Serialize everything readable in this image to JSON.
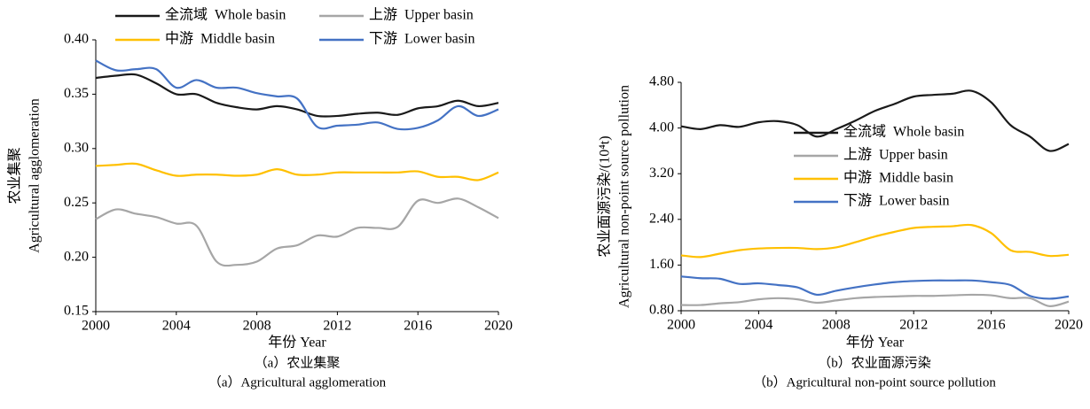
{
  "chart_data": [
    {
      "type": "line",
      "y_label": [
        "农业集聚",
        "Agricultural agglomeration"
      ],
      "x_label": "年份  Year",
      "caption": [
        "（a）农业集聚",
        "（a）Agricultural agglomeration"
      ],
      "x": [
        2000,
        2001,
        2002,
        2003,
        2004,
        2005,
        2006,
        2007,
        2008,
        2009,
        2010,
        2011,
        2012,
        2013,
        2014,
        2015,
        2016,
        2017,
        2018,
        2019,
        2020
      ],
      "xlim": [
        2000,
        2020
      ],
      "xticks": [
        2000,
        2004,
        2008,
        2012,
        2016,
        2020
      ],
      "ylim": [
        0.15,
        0.4
      ],
      "yticks": [
        0.15,
        {
          "value": 0.2,
          "label": "0.20"
        },
        0.25,
        {
          "value": 0.3,
          "label": "0.30"
        },
        0.35,
        {
          "value": 0.4,
          "label": "0.40"
        }
      ],
      "legend": "top",
      "series": [
        {
          "name": "全流域  Whole basin",
          "color": "#1a1a1a",
          "values": [
            0.365,
            0.367,
            0.368,
            0.36,
            0.35,
            0.35,
            0.342,
            0.338,
            0.336,
            0.339,
            0.336,
            0.33,
            0.33,
            0.332,
            0.333,
            0.331,
            0.337,
            0.339,
            0.344,
            0.339,
            0.342
          ]
        },
        {
          "name": "上游  Upper basin",
          "color": "#a6a6a6",
          "values": [
            0.235,
            0.244,
            0.24,
            0.237,
            0.231,
            0.229,
            0.196,
            0.193,
            0.196,
            0.208,
            0.211,
            0.22,
            0.219,
            0.227,
            0.227,
            0.228,
            0.252,
            0.25,
            0.254,
            0.246,
            0.236
          ]
        },
        {
          "name": "中游  Middle basin",
          "color": "#ffc000",
          "values": [
            0.284,
            0.285,
            0.286,
            0.28,
            0.275,
            0.276,
            0.276,
            0.275,
            0.276,
            0.281,
            0.276,
            0.276,
            0.278,
            0.278,
            0.278,
            0.278,
            0.279,
            0.274,
            0.274,
            0.271,
            0.278
          ]
        },
        {
          "name": "下游  Lower basin",
          "color": "#4472c4",
          "values": [
            0.381,
            0.372,
            0.373,
            0.373,
            0.356,
            0.363,
            0.356,
            0.356,
            0.351,
            0.348,
            0.346,
            0.32,
            0.321,
            0.322,
            0.324,
            0.318,
            0.319,
            0.326,
            0.339,
            0.33,
            0.336
          ]
        }
      ]
    },
    {
      "type": "line",
      "y_label": [
        "农业面源污染/(10⁴t)",
        "Agricultural non-point source pollution"
      ],
      "x_label": "年份  Year",
      "caption": [
        "（b）农业面源污染",
        "（b）Agricultural non-point source pollution"
      ],
      "x": [
        2000,
        2001,
        2002,
        2003,
        2004,
        2005,
        2006,
        2007,
        2008,
        2009,
        2010,
        2011,
        2012,
        2013,
        2014,
        2015,
        2016,
        2017,
        2018,
        2019,
        2020
      ],
      "xlim": [
        2000,
        2020
      ],
      "xticks": [
        2000,
        2004,
        2008,
        2012,
        2016,
        2020
      ],
      "ylim": [
        0.8,
        4.8
      ],
      "yticks": [
        {
          "value": 0.8,
          "label": "0.80"
        },
        {
          "value": 1.6,
          "label": "1.60"
        },
        {
          "value": 2.4,
          "label": "2.40"
        },
        {
          "value": 3.2,
          "label": "3.20"
        },
        {
          "value": 4.0,
          "label": "4.00"
        },
        {
          "value": 4.8,
          "label": "4.80"
        }
      ],
      "legend": "right",
      "series": [
        {
          "name": "全流域  Whole basin",
          "color": "#1a1a1a",
          "values": [
            4.03,
            3.98,
            4.05,
            4.02,
            4.1,
            4.12,
            4.05,
            3.85,
            3.98,
            4.13,
            4.3,
            4.42,
            4.55,
            4.58,
            4.6,
            4.65,
            4.45,
            4.05,
            3.85,
            3.6,
            3.72
          ]
        },
        {
          "name": "上游  Upper basin",
          "color": "#a6a6a6",
          "values": [
            0.9,
            0.9,
            0.93,
            0.95,
            1.0,
            1.02,
            1.0,
            0.94,
            0.98,
            1.02,
            1.04,
            1.05,
            1.06,
            1.06,
            1.07,
            1.08,
            1.07,
            1.02,
            1.02,
            0.88,
            0.96
          ]
        },
        {
          "name": "中游  Middle basin",
          "color": "#ffc000",
          "values": [
            1.77,
            1.74,
            1.8,
            1.86,
            1.89,
            1.9,
            1.9,
            1.88,
            1.91,
            2.0,
            2.1,
            2.18,
            2.25,
            2.27,
            2.28,
            2.3,
            2.16,
            1.86,
            1.83,
            1.76,
            1.78
          ]
        },
        {
          "name": "下游  Lower basin",
          "color": "#4472c4",
          "values": [
            1.4,
            1.37,
            1.36,
            1.27,
            1.28,
            1.25,
            1.21,
            1.08,
            1.15,
            1.21,
            1.26,
            1.3,
            1.32,
            1.33,
            1.33,
            1.33,
            1.3,
            1.25,
            1.06,
            1.01,
            1.05
          ]
        }
      ]
    }
  ]
}
